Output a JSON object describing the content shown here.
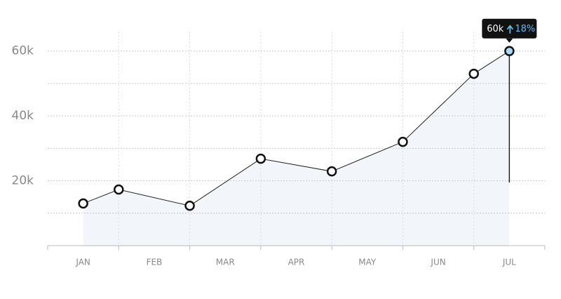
{
  "chart_data": {
    "type": "area",
    "x": [
      0.5,
      1,
      2,
      3,
      4,
      5,
      6,
      6.5
    ],
    "values": [
      13000,
      17300,
      12300,
      26800,
      22900,
      32000,
      53000,
      60000
    ],
    "color": "#222222",
    "fill": "#f2f6fb",
    "xlim": [
      0,
      7
    ],
    "xticks": [
      {
        "value": 0.5,
        "label": "JAN"
      },
      {
        "value": 1.5,
        "label": "FEB"
      },
      {
        "value": 2.5,
        "label": "MAR"
      },
      {
        "value": 3.5,
        "label": "APR"
      },
      {
        "value": 4.5,
        "label": "MAY"
      },
      {
        "value": 5.5,
        "label": "JUN"
      },
      {
        "value": 6.5,
        "label": "JUL"
      }
    ],
    "xgrid": [
      0,
      1,
      2,
      3,
      4,
      5,
      6,
      7
    ],
    "ylim": [
      0,
      66000
    ],
    "yticks": [
      {
        "value": 20000,
        "label": "20k"
      },
      {
        "value": 40000,
        "label": "40k"
      },
      {
        "value": 60000,
        "label": "60k"
      }
    ],
    "yminor": [
      10000,
      30000,
      50000
    ],
    "grid": true,
    "tooltip": {
      "text": "60k",
      "change": "18%",
      "change_color": "#5bbcf0"
    }
  }
}
